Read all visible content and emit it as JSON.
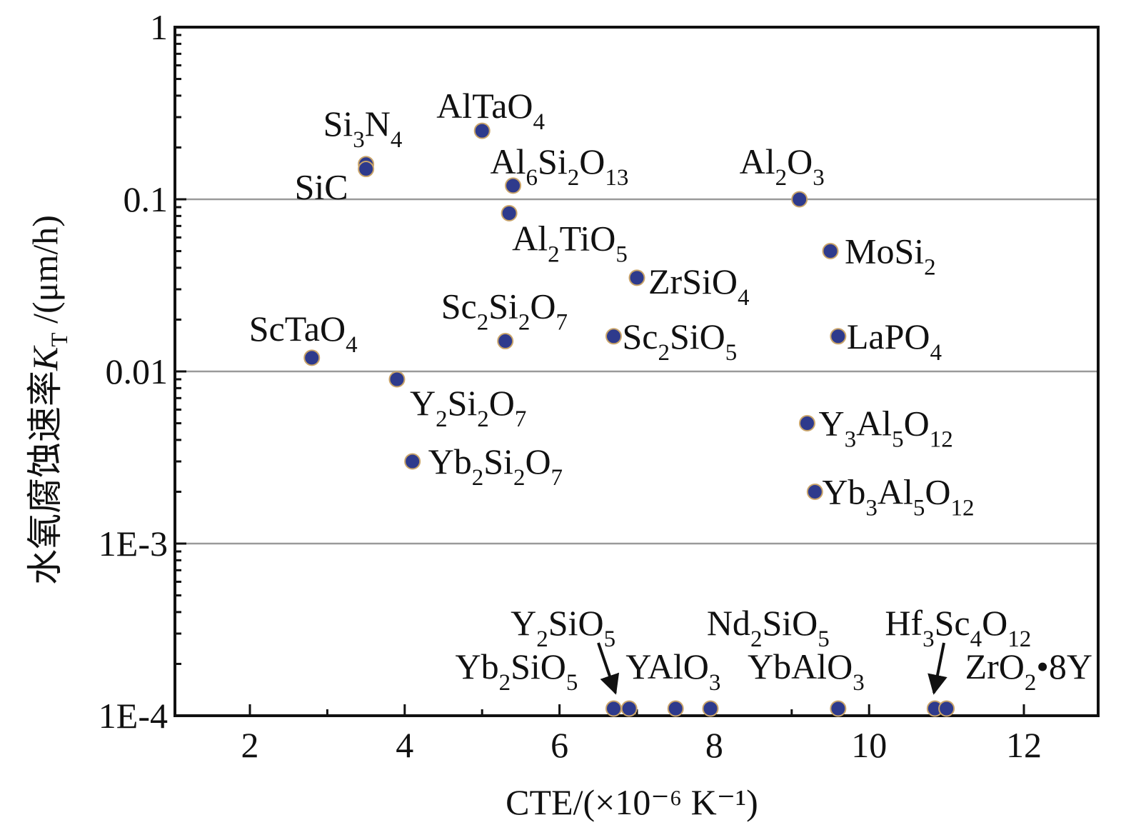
{
  "chart_data": {
    "type": "scatter",
    "xlabel": "CTE/(×10⁻⁶ K⁻¹)",
    "ylabel_parts": {
      "main": "水氧腐蚀速率",
      "symbol": "K",
      "symbol_sub": "T",
      "unit": " /(μm/h)"
    },
    "xlim": [
      1.1,
      13
    ],
    "ylim": [
      0.0001,
      1
    ],
    "y_scale": "log",
    "grid": "horizontal at 0.1, 0.01, 1E-3",
    "x_ticks": [
      {
        "v": 2,
        "label": "2"
      },
      {
        "v": 4,
        "label": "4"
      },
      {
        "v": 6,
        "label": "6"
      },
      {
        "v": 8,
        "label": "8"
      },
      {
        "v": 10,
        "label": "10"
      },
      {
        "v": 12,
        "label": "12"
      }
    ],
    "y_ticks": [
      {
        "v": 1,
        "label": "1"
      },
      {
        "v": 0.1,
        "label": "0.1"
      },
      {
        "v": 0.01,
        "label": "0.01"
      },
      {
        "v": 0.001,
        "label": "1E-3"
      },
      {
        "v": 0.0001,
        "label": "1E-4"
      }
    ],
    "points": [
      {
        "name": "Si3N4",
        "x": 3.5,
        "y": 0.16,
        "label": [
          [
            "Si",
            ""
          ],
          [
            "3",
            "s"
          ],
          [
            "N",
            ""
          ],
          [
            "4",
            "s"
          ]
        ]
      },
      {
        "name": "SiC",
        "x": 3.5,
        "y": 0.15,
        "label": [
          [
            "SiC",
            ""
          ]
        ]
      },
      {
        "name": "AlTaO4",
        "x": 5.0,
        "y": 0.25,
        "label": [
          [
            "AlTaO",
            ""
          ],
          [
            "4",
            "s"
          ]
        ]
      },
      {
        "name": "Al6Si2O13",
        "x": 5.4,
        "y": 0.12,
        "label": [
          [
            "Al",
            ""
          ],
          [
            "6",
            "s"
          ],
          [
            "Si",
            ""
          ],
          [
            "2",
            "s"
          ],
          [
            "O",
            ""
          ],
          [
            "13",
            "s"
          ]
        ]
      },
      {
        "name": "Al2TiO5",
        "x": 5.35,
        "y": 0.083,
        "label": [
          [
            "Al",
            ""
          ],
          [
            "2",
            "s"
          ],
          [
            "TiO",
            ""
          ],
          [
            "5",
            "s"
          ]
        ]
      },
      {
        "name": "Al2O3",
        "x": 9.1,
        "y": 0.1,
        "label": [
          [
            "Al",
            ""
          ],
          [
            "2",
            "s"
          ],
          [
            "O",
            ""
          ],
          [
            "3",
            "s"
          ]
        ]
      },
      {
        "name": "MoSi2",
        "x": 9.5,
        "y": 0.05,
        "label": [
          [
            "MoSi",
            ""
          ],
          [
            "2",
            "s"
          ]
        ]
      },
      {
        "name": "ZrSiO4",
        "x": 7.0,
        "y": 0.035,
        "label": [
          [
            "ZrSiO",
            ""
          ],
          [
            "4",
            "s"
          ]
        ]
      },
      {
        "name": "Sc2Si2O7",
        "x": 5.3,
        "y": 0.015,
        "label": [
          [
            "Sc",
            ""
          ],
          [
            "2",
            "s"
          ],
          [
            "Si",
            ""
          ],
          [
            "2",
            "s"
          ],
          [
            "O",
            ""
          ],
          [
            "7",
            "s"
          ]
        ]
      },
      {
        "name": "Sc2SiO5",
        "x": 6.7,
        "y": 0.016,
        "label": [
          [
            "Sc",
            ""
          ],
          [
            "2",
            "s"
          ],
          [
            "SiO",
            ""
          ],
          [
            "5",
            "s"
          ]
        ]
      },
      {
        "name": "LaPO4",
        "x": 9.6,
        "y": 0.016,
        "label": [
          [
            "LaPO",
            ""
          ],
          [
            "4",
            "s"
          ]
        ]
      },
      {
        "name": "ScTaO4",
        "x": 2.8,
        "y": 0.012,
        "label": [
          [
            "ScTaO",
            ""
          ],
          [
            "4",
            "s"
          ]
        ]
      },
      {
        "name": "Y2Si2O7",
        "x": 3.9,
        "y": 0.009,
        "label": [
          [
            "Y",
            ""
          ],
          [
            "2",
            "s"
          ],
          [
            "Si",
            ""
          ],
          [
            "2",
            "s"
          ],
          [
            "O",
            ""
          ],
          [
            "7",
            "s"
          ]
        ]
      },
      {
        "name": "Y3Al5O12",
        "x": 9.2,
        "y": 0.005,
        "label": [
          [
            "Y",
            ""
          ],
          [
            "3",
            "s"
          ],
          [
            "Al",
            ""
          ],
          [
            "5",
            "s"
          ],
          [
            "O",
            ""
          ],
          [
            "12",
            "s"
          ]
        ]
      },
      {
        "name": "Yb2Si2O7",
        "x": 4.1,
        "y": 0.003,
        "label": [
          [
            "Yb",
            ""
          ],
          [
            "2",
            "s"
          ],
          [
            "Si",
            ""
          ],
          [
            "2",
            "s"
          ],
          [
            "O",
            ""
          ],
          [
            "7",
            "s"
          ]
        ]
      },
      {
        "name": "Yb3Al5O12",
        "x": 9.3,
        "y": 0.002,
        "label": [
          [
            "Yb",
            ""
          ],
          [
            "3",
            "s"
          ],
          [
            "Al",
            ""
          ],
          [
            "5",
            "s"
          ],
          [
            "O",
            ""
          ],
          [
            "12",
            "s"
          ]
        ]
      },
      {
        "name": "Yb2SiO5",
        "x": 6.7,
        "y": 0.00011,
        "label": [
          [
            "Yb",
            ""
          ],
          [
            "2",
            "s"
          ],
          [
            "SiO",
            ""
          ],
          [
            "5",
            "s"
          ]
        ]
      },
      {
        "name": "Y2SiO5",
        "x": 6.9,
        "y": 0.00011,
        "label": [
          [
            "Y",
            ""
          ],
          [
            "2",
            "s"
          ],
          [
            "SiO",
            ""
          ],
          [
            "5",
            "s"
          ]
        ]
      },
      {
        "name": "YAlO3",
        "x": 7.5,
        "y": 0.00011,
        "label": [
          [
            "YAlO",
            ""
          ],
          [
            "3",
            "s"
          ]
        ]
      },
      {
        "name": "YbAlO3",
        "x": 7.95,
        "y": 0.00011,
        "label": [
          [
            "YbAlO",
            ""
          ],
          [
            "3",
            "s"
          ]
        ]
      },
      {
        "name": "Nd2SiO5",
        "x": 9.6,
        "y": 0.00011,
        "label": [
          [
            "Nd",
            ""
          ],
          [
            "2",
            "s"
          ],
          [
            "SiO",
            ""
          ],
          [
            "5",
            "s"
          ]
        ]
      },
      {
        "name": "Hf3Sc4O12",
        "x": 10.85,
        "y": 0.00011,
        "label": [
          [
            "Hf",
            ""
          ],
          [
            "3",
            "s"
          ],
          [
            "Sc",
            ""
          ],
          [
            "4",
            "s"
          ],
          [
            "O",
            ""
          ],
          [
            "12",
            "s"
          ]
        ]
      },
      {
        "name": "ZrO2·8Y",
        "x": 11.0,
        "y": 0.00011,
        "label": [
          [
            "ZrO",
            ""
          ],
          [
            "2",
            "s"
          ],
          [
            "•8Y",
            ""
          ]
        ]
      }
    ],
    "colors": {
      "marker_fill": "#2e3a8c",
      "marker_edge": "#c9a46a",
      "grid": "#9a9a9a",
      "axis": "#111111"
    }
  }
}
